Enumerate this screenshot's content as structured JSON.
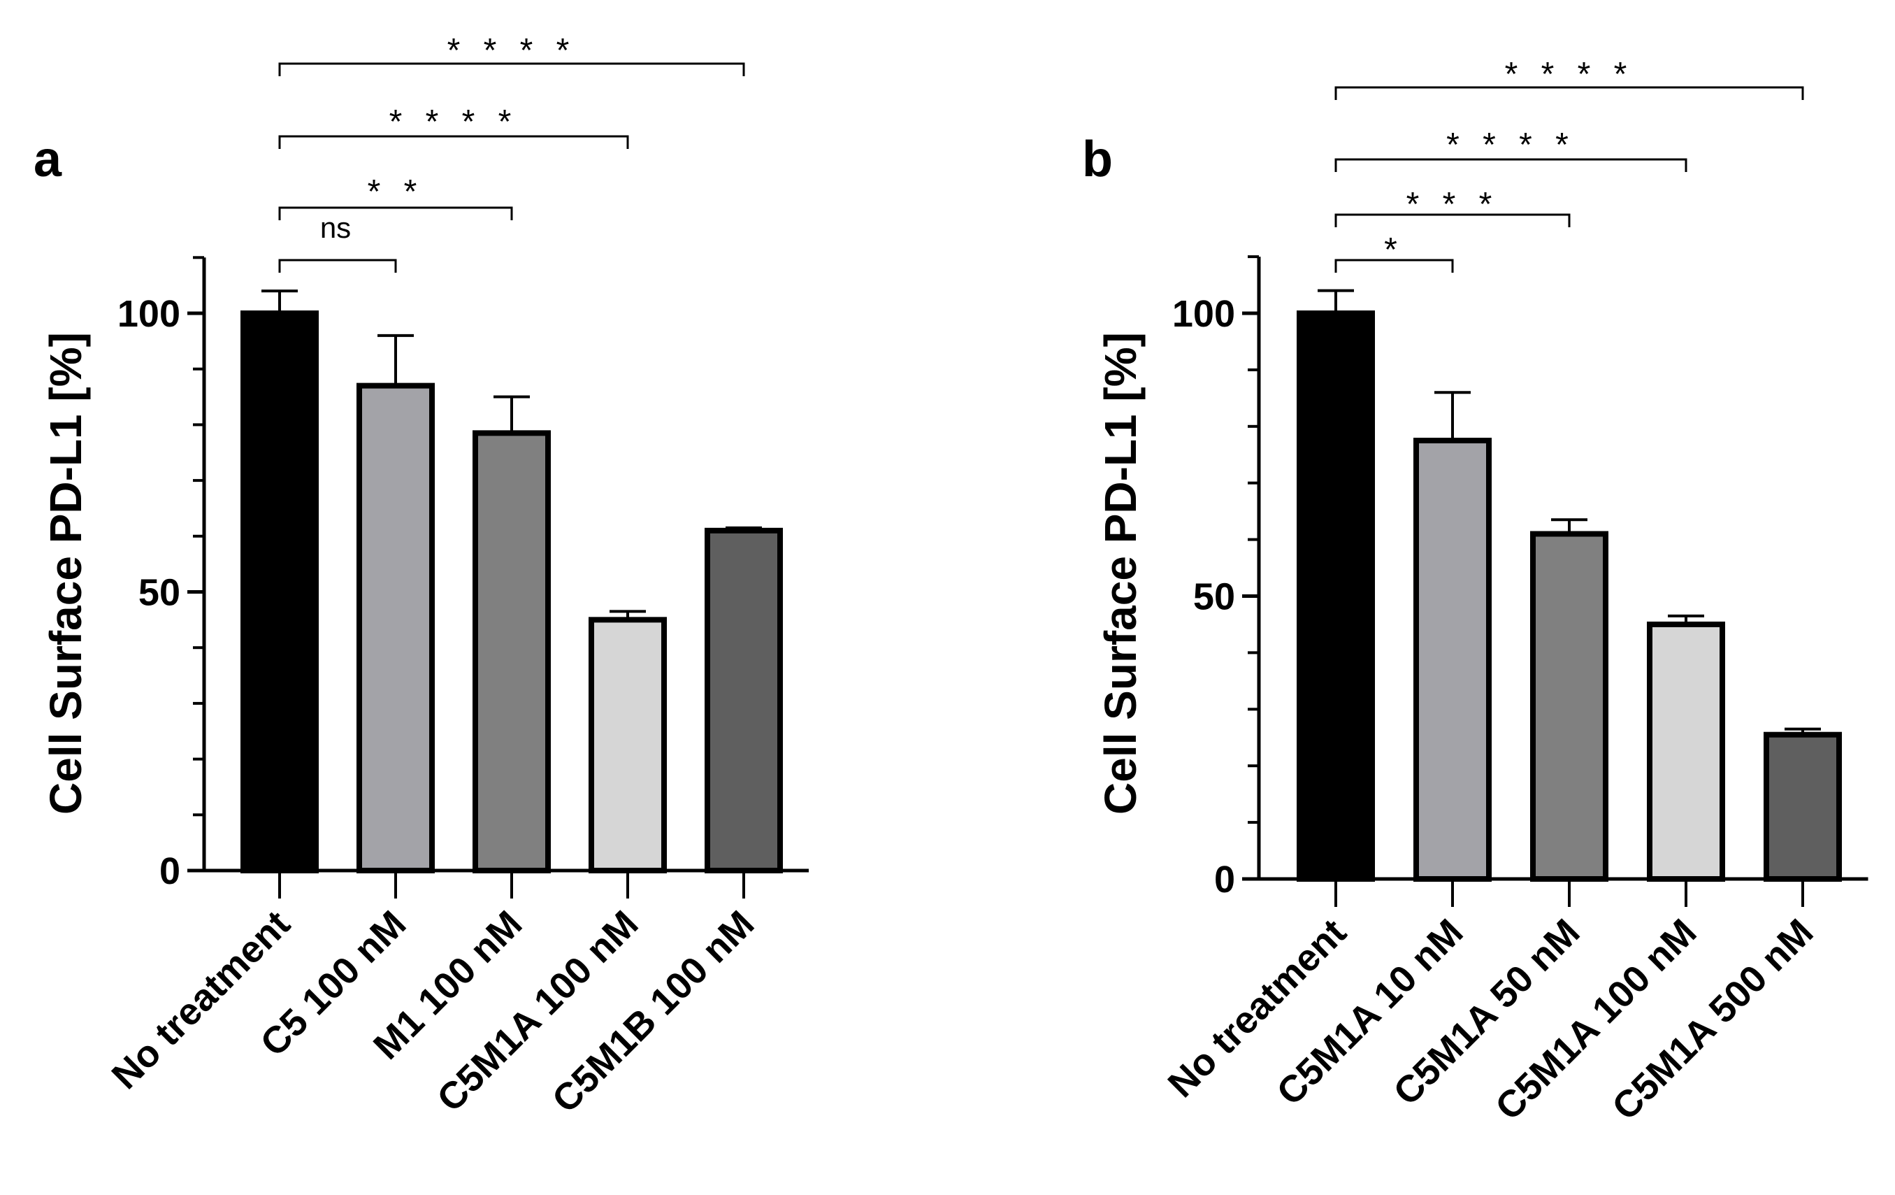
{
  "chart_data": [
    {
      "type": "bar",
      "panel": "a",
      "ylabel": "Cell  Surface  PD-L1 [%]",
      "ylim": [
        0,
        110
      ],
      "yticks": [
        0,
        50,
        100
      ],
      "tick_labels": [
        "0",
        "50",
        "100"
      ],
      "categories": [
        "No treatment",
        "C5 100 nM",
        "M1 100 nM",
        "C5M1A 100 nM",
        "C5M1B 100 nM"
      ],
      "values": [
        100,
        87,
        78.5,
        45,
        61
      ],
      "errors": [
        4,
        9,
        6.5,
        1.5,
        0.5
      ],
      "bar_colors": [
        "#000000",
        "#a3a3a8",
        "#808080",
        "#d6d6d6",
        "#5f5f5f"
      ],
      "comparisons": [
        {
          "from": "No treatment",
          "to": "C5 100 nM",
          "label": "ns"
        },
        {
          "from": "No treatment",
          "to": "M1 100 nM",
          "label": "**"
        },
        {
          "from": "No treatment",
          "to": "C5M1A 100 nM",
          "label": "****"
        },
        {
          "from": "No treatment",
          "to": "C5M1B 100 nM",
          "label": "****"
        }
      ]
    },
    {
      "type": "bar",
      "panel": "b",
      "ylabel": "Cell  Surface  PD-L1 [%]",
      "ylim": [
        0,
        110
      ],
      "yticks": [
        0,
        50,
        100
      ],
      "tick_labels": [
        "0",
        "50",
        "100"
      ],
      "categories": [
        "No treatment",
        "C5M1A 10 nM",
        "C5M1A 50 nM",
        "C5M1A 100 nM",
        "C5M1A 500 nM"
      ],
      "values": [
        100,
        77.5,
        61,
        45,
        25.5
      ],
      "errors": [
        4,
        8.5,
        2.5,
        1.5,
        1
      ],
      "bar_colors": [
        "#000000",
        "#a3a3a8",
        "#808080",
        "#d6d6d6",
        "#5f5f5f"
      ],
      "comparisons": [
        {
          "from": "No treatment",
          "to": "C5M1A 10 nM",
          "label": "*"
        },
        {
          "from": "No treatment",
          "to": "C5M1A 50 nM",
          "label": "***"
        },
        {
          "from": "No treatment",
          "to": "C5M1A 100 nM",
          "label": "****"
        },
        {
          "from": "No treatment",
          "to": "C5M1A 500 nM",
          "label": "****"
        }
      ]
    }
  ]
}
